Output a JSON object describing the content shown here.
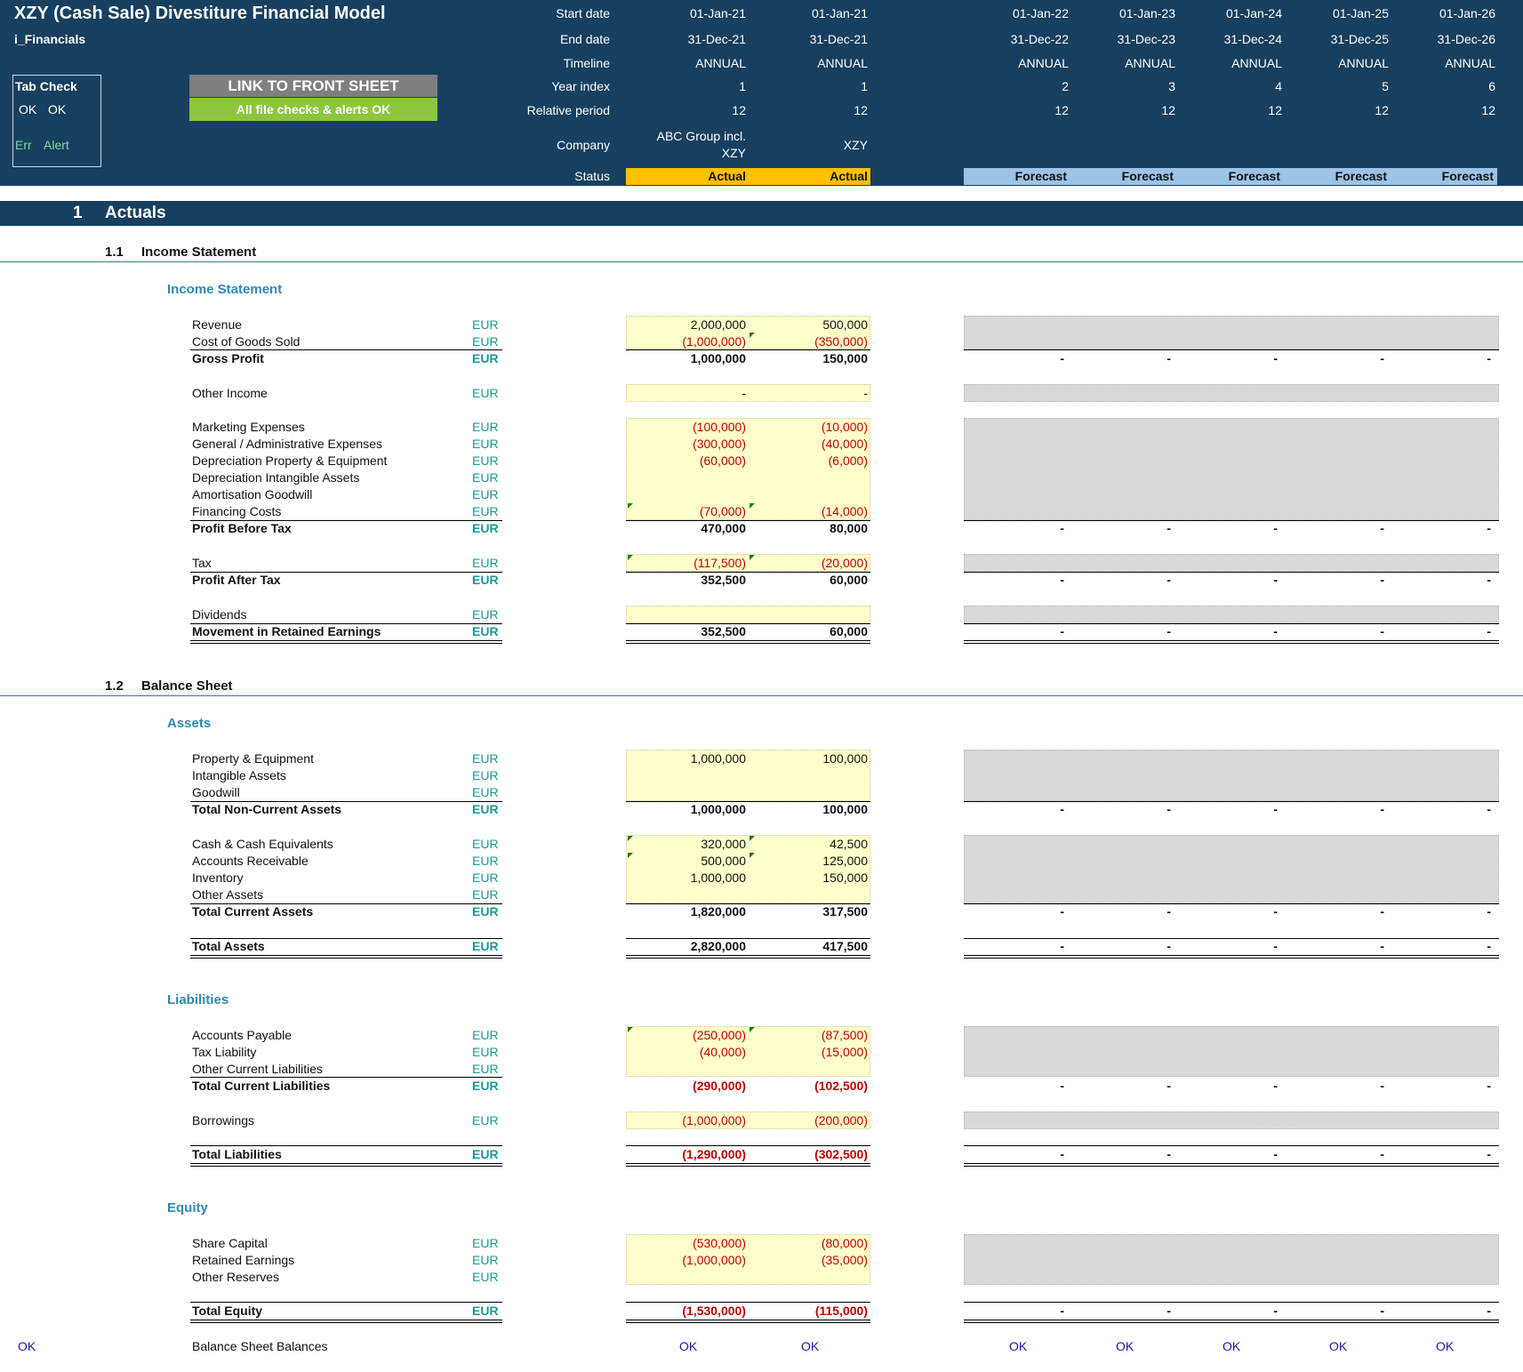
{
  "header": {
    "title": "XZY (Cash Sale) Divestiture Financial Model",
    "sheet": "i_Financials",
    "tab_check": {
      "title": "Tab Check",
      "ok1": "OK",
      "ok2": "OK",
      "err": "Err",
      "alert": "Alert"
    },
    "link_button": "LINK TO FRONT SHEET",
    "checks_ok": "All file checks & alerts OK",
    "row_labels": {
      "start": "Start date",
      "end": "End date",
      "timeline": "Timeline",
      "year_index": "Year index",
      "relative_period": "Relative period",
      "company": "Company",
      "status": "Status"
    },
    "columns": [
      {
        "start": "01-Jan-21",
        "end": "31-Dec-21",
        "timeline": "ANNUAL",
        "year": "1",
        "period": "12",
        "company": "ABC Group incl.",
        "company2": "XZY",
        "status": "Actual"
      },
      {
        "start": "01-Jan-21",
        "end": "31-Dec-21",
        "timeline": "ANNUAL",
        "year": "1",
        "period": "12",
        "company": "XZY",
        "status": "Actual"
      },
      {
        "start": "01-Jan-22",
        "end": "31-Dec-22",
        "timeline": "ANNUAL",
        "year": "2",
        "period": "12",
        "status": "Forecast"
      },
      {
        "start": "01-Jan-23",
        "end": "31-Dec-23",
        "timeline": "ANNUAL",
        "year": "3",
        "period": "12",
        "status": "Forecast"
      },
      {
        "start": "01-Jan-24",
        "end": "31-Dec-24",
        "timeline": "ANNUAL",
        "year": "4",
        "period": "12",
        "status": "Forecast"
      },
      {
        "start": "01-Jan-25",
        "end": "31-Dec-25",
        "timeline": "ANNUAL",
        "year": "5",
        "period": "12",
        "status": "Forecast"
      },
      {
        "start": "01-Jan-26",
        "end": "31-Dec-26",
        "timeline": "ANNUAL",
        "year": "6",
        "period": "12",
        "status": "Forecast"
      }
    ]
  },
  "section1": {
    "num": "1",
    "title": "Actuals"
  },
  "income": {
    "num": "1.1",
    "title": "Income Statement",
    "group": "Income Statement",
    "rows": {
      "revenue": {
        "label": "Revenue",
        "unit": "EUR",
        "v1": "2,000,000",
        "v2": "500,000"
      },
      "cogs": {
        "label": "Cost of Goods Sold",
        "unit": "EUR",
        "v1": "(1,000,000)",
        "v2": "(350,000)"
      },
      "gross": {
        "label": "Gross Profit",
        "unit": "EUR",
        "v1": "1,000,000",
        "v2": "150,000"
      },
      "other_income": {
        "label": "Other Income",
        "unit": "EUR",
        "v1": "-",
        "v2": "-"
      },
      "marketing": {
        "label": "Marketing Expenses",
        "unit": "EUR",
        "v1": "(100,000)",
        "v2": "(10,000)"
      },
      "ga": {
        "label": "General / Administrative Expenses",
        "unit": "EUR",
        "v1": "(300,000)",
        "v2": "(40,000)"
      },
      "dep_pe": {
        "label": "Depreciation Property & Equipment",
        "unit": "EUR",
        "v1": "(60,000)",
        "v2": "(6,000)"
      },
      "dep_int": {
        "label": "Depreciation Intangible Assets",
        "unit": "EUR"
      },
      "amort": {
        "label": "Amortisation Goodwill",
        "unit": "EUR"
      },
      "fin": {
        "label": "Financing Costs",
        "unit": "EUR",
        "v1": "(70,000)",
        "v2": "(14,000)"
      },
      "pbt": {
        "label": "Profit Before Tax",
        "unit": "EUR",
        "v1": "470,000",
        "v2": "80,000"
      },
      "tax": {
        "label": "Tax",
        "unit": "EUR",
        "v1": "(117,500)",
        "v2": "(20,000)"
      },
      "pat": {
        "label": "Profit After Tax",
        "unit": "EUR",
        "v1": "352,500",
        "v2": "60,000"
      },
      "div": {
        "label": "Dividends",
        "unit": "EUR"
      },
      "mre": {
        "label": "Movement in Retained Earnings",
        "unit": "EUR",
        "v1": "352,500",
        "v2": "60,000"
      }
    }
  },
  "balance": {
    "num": "1.2",
    "title": "Balance Sheet",
    "assets_group": "Assets",
    "liab_group": "Liabilities",
    "equity_group": "Equity",
    "rows": {
      "pe": {
        "label": "Property & Equipment",
        "unit": "EUR",
        "v1": "1,000,000",
        "v2": "100,000"
      },
      "ia": {
        "label": "Intangible Assets",
        "unit": "EUR"
      },
      "gw": {
        "label": "Goodwill",
        "unit": "EUR"
      },
      "tnca": {
        "label": "Total Non-Current Assets",
        "unit": "EUR",
        "v1": "1,000,000",
        "v2": "100,000"
      },
      "cash": {
        "label": "Cash & Cash Equivalents",
        "unit": "EUR",
        "v1": "320,000",
        "v2": "42,500"
      },
      "ar": {
        "label": "Accounts Receivable",
        "unit": "EUR",
        "v1": "500,000",
        "v2": "125,000"
      },
      "inv": {
        "label": "Inventory",
        "unit": "EUR",
        "v1": "1,000,000",
        "v2": "150,000"
      },
      "oa": {
        "label": "Other Assets",
        "unit": "EUR"
      },
      "tca": {
        "label": "Total Current Assets",
        "unit": "EUR",
        "v1": "1,820,000",
        "v2": "317,500"
      },
      "ta": {
        "label": "Total Assets",
        "unit": "EUR",
        "v1": "2,820,000",
        "v2": "417,500"
      },
      "ap": {
        "label": "Accounts Payable",
        "unit": "EUR",
        "v1": "(250,000)",
        "v2": "(87,500)"
      },
      "tl": {
        "label": "Tax Liability",
        "unit": "EUR",
        "v1": "(40,000)",
        "v2": "(15,000)"
      },
      "ocl": {
        "label": "Other Current Liabilities",
        "unit": "EUR"
      },
      "tcl": {
        "label": "Total Current Liabilities",
        "unit": "EUR",
        "v1": "(290,000)",
        "v2": "(102,500)"
      },
      "borr": {
        "label": "Borrowings",
        "unit": "EUR",
        "v1": "(1,000,000)",
        "v2": "(200,000)"
      },
      "tliab": {
        "label": "Total Liabilities",
        "unit": "EUR",
        "v1": "(1,290,000)",
        "v2": "(302,500)"
      },
      "sc": {
        "label": "Share Capital",
        "unit": "EUR",
        "v1": "(530,000)",
        "v2": "(80,000)"
      },
      "re": {
        "label": "Retained Earnings",
        "unit": "EUR",
        "v1": "(1,000,000)",
        "v2": "(35,000)"
      },
      "or": {
        "label": "Other Reserves",
        "unit": "EUR"
      },
      "teq": {
        "label": "Total Equity",
        "unit": "EUR",
        "v1": "(1,530,000)",
        "v2": "(115,000)"
      }
    },
    "check_row": {
      "left_ok": "OK",
      "label": "Balance Sheet Balances",
      "ok": "OK"
    }
  },
  "dash": "-"
}
